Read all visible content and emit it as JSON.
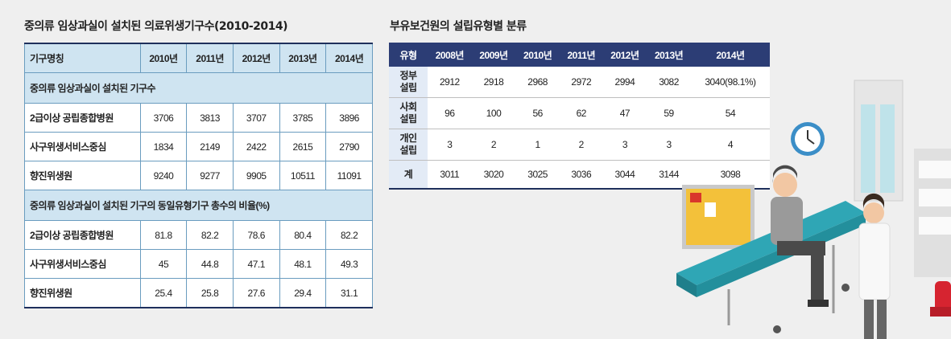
{
  "left_title": "중의류 임상과실이 설치된 의료위생기구수(2010-2014)",
  "right_title": "부유보건원의 설립유형별 분류",
  "left_table": {
    "header": [
      "기구명칭",
      "2010년",
      "2011년",
      "2012년",
      "2013년",
      "2014년"
    ],
    "section1": "중의류 임상과실이 설치된 기구수",
    "rows1": [
      {
        "name": "2급이상 공립종합병원",
        "values": [
          "3706",
          "3813",
          "3707",
          "3785",
          "3896"
        ]
      },
      {
        "name": "사구위생서비스중심",
        "values": [
          "1834",
          "2149",
          "2422",
          "2615",
          "2790"
        ]
      },
      {
        "name": "향진위생원",
        "values": [
          "9240",
          "9277",
          "9905",
          "10511",
          "11091"
        ]
      }
    ],
    "section2": "중의류 임상과실이 설치된 기구의 동일유형기구 총수의 비율(%)",
    "rows2": [
      {
        "name": "2급이상 공립종합병원",
        "values": [
          "81.8",
          "82.2",
          "78.6",
          "80.4",
          "82.2"
        ]
      },
      {
        "name": "사구위생서비스중심",
        "values": [
          "45",
          "44.8",
          "47.1",
          "48.1",
          "49.3"
        ]
      },
      {
        "name": "향진위생원",
        "values": [
          "25.4",
          "25.8",
          "27.6",
          "29.4",
          "31.1"
        ]
      }
    ]
  },
  "right_table": {
    "header": [
      "유형",
      "2008년",
      "2009년",
      "2010년",
      "2011년",
      "2012년",
      "2013년",
      "2014년"
    ],
    "rows": [
      {
        "label": "정부\n설립",
        "values": [
          "2912",
          "2918",
          "2968",
          "2972",
          "2994",
          "3082",
          "3040(98.1%)"
        ]
      },
      {
        "label": "사회\n설립",
        "values": [
          "96",
          "100",
          "56",
          "62",
          "47",
          "59",
          "54"
        ]
      },
      {
        "label": "개인\n설립",
        "values": [
          "3",
          "2",
          "1",
          "2",
          "3",
          "3",
          "4"
        ]
      },
      {
        "label": "계",
        "values": [
          "3011",
          "3020",
          "3025",
          "3036",
          "3044",
          "3144",
          "3098"
        ]
      }
    ]
  }
}
